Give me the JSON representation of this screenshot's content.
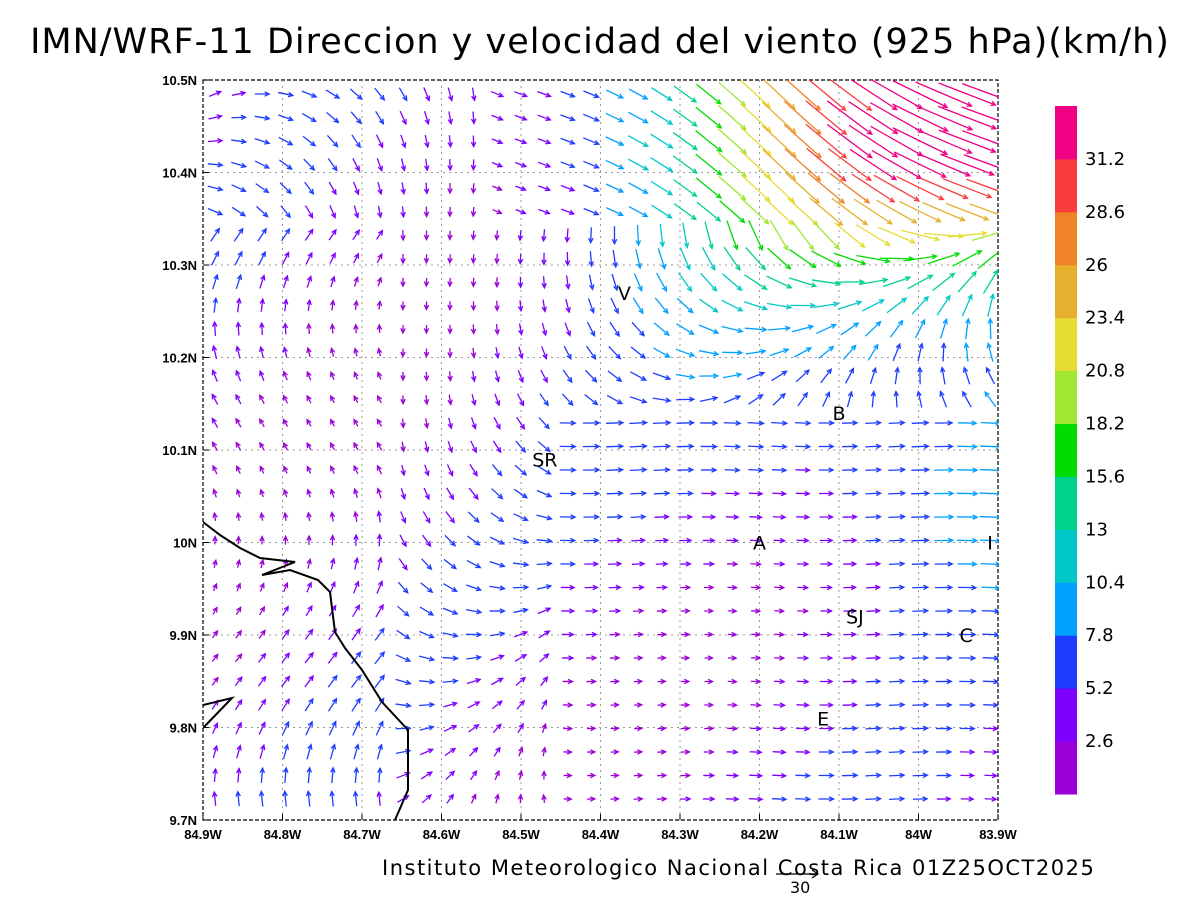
{
  "title": "IMN/WRF-11 Direccion y velocidad del viento (925 hPa)(km/h)",
  "credit": "Instituto Meteorologico Nacional Costa Rica 01Z25OCT2025",
  "reference_vector_label": "30",
  "axes": {
    "x_ticks": [
      "84.9W",
      "84.8W",
      "84.7W",
      "84.6W",
      "84.5W",
      "84.4W",
      "84.3W",
      "84.2W",
      "84.1W",
      "84W",
      "83.9W"
    ],
    "y_ticks": [
      "10.5N",
      "10.4N",
      "10.3N",
      "10.2N",
      "10.1N",
      "10N",
      "9.9N",
      "9.8N",
      "9.7N"
    ],
    "lon_range": [
      -84.9,
      -83.9
    ],
    "lat_range": [
      9.7,
      10.5
    ],
    "grid": "dotted"
  },
  "colorbar": {
    "labels": [
      "2.6",
      "5.2",
      "7.8",
      "10.4",
      "13",
      "15.6",
      "18.2",
      "20.8",
      "23.4",
      "26",
      "28.6",
      "31.2"
    ],
    "colors": [
      "#9b00d7",
      "#7f00ff",
      "#1e3cff",
      "#00a0ff",
      "#00c8c8",
      "#00d28c",
      "#00dc00",
      "#a0e632",
      "#e6dc32",
      "#e6af2d",
      "#f08228",
      "#fa3c3c",
      "#f00082"
    ]
  },
  "locations": [
    {
      "label": "V",
      "lon": -84.37,
      "lat": 10.27
    },
    {
      "label": "SR",
      "lon": -84.47,
      "lat": 10.09
    },
    {
      "label": "B",
      "lon": -84.1,
      "lat": 10.14
    },
    {
      "label": "A",
      "lon": -84.2,
      "lat": 10.0
    },
    {
      "label": "I",
      "lon": -83.91,
      "lat": 10.0
    },
    {
      "label": "SJ",
      "lon": -84.08,
      "lat": 9.92
    },
    {
      "label": "C",
      "lon": -83.94,
      "lat": 9.9
    },
    {
      "label": "E",
      "lon": -84.12,
      "lat": 9.81
    }
  ]
}
